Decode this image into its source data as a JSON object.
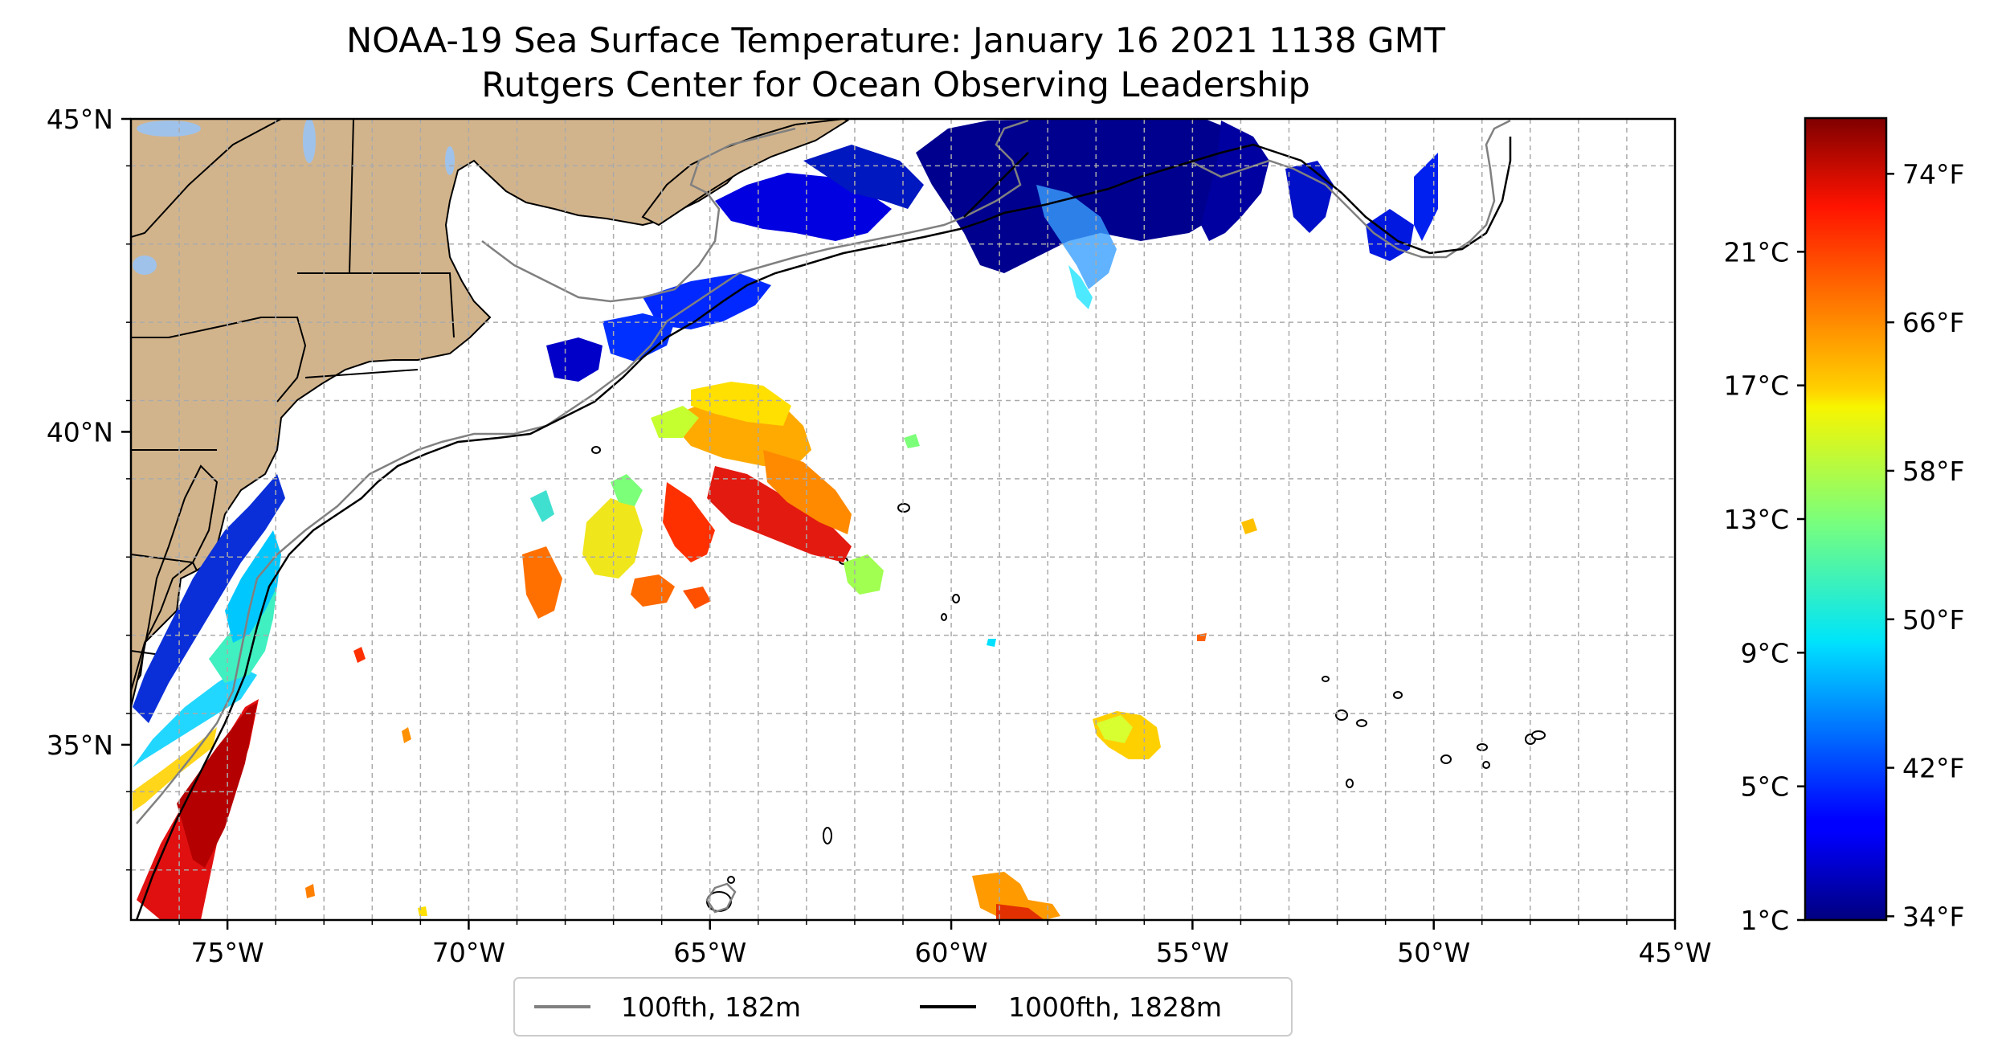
{
  "title": "NOAA-19 Sea Surface Temperature: January 16 2021 1138 GMT",
  "subtitle": "Rutgers Center for Ocean Observing Leadership",
  "map": {
    "lon_range": [
      -77,
      -45
    ],
    "lat_range": [
      32.2,
      45
    ],
    "x_ticks": [
      {
        "lon": -75,
        "label": "75°W"
      },
      {
        "lon": -70,
        "label": "70°W"
      },
      {
        "lon": -65,
        "label": "65°W"
      },
      {
        "lon": -60,
        "label": "60°W"
      },
      {
        "lon": -55,
        "label": "55°W"
      },
      {
        "lon": -50,
        "label": "50°W"
      },
      {
        "lon": -45,
        "label": "45°W"
      }
    ],
    "y_ticks": [
      {
        "lat": 45,
        "label": "45°N"
      },
      {
        "lat": 40,
        "label": "40°N"
      },
      {
        "lat": 35,
        "label": "35°N"
      }
    ],
    "grid": true,
    "land_color": "#d2b48c",
    "lake_color": "#9fc2ea",
    "ocean_color": "#ffffff"
  },
  "colorbar": {
    "colormap": "jet",
    "range_c": [
      1,
      25
    ],
    "celsius_ticks": [
      {
        "value": 1,
        "label": "1°C"
      },
      {
        "value": 5,
        "label": "5°C"
      },
      {
        "value": 9,
        "label": "9°C"
      },
      {
        "value": 13,
        "label": "13°C"
      },
      {
        "value": 17,
        "label": "17°C"
      },
      {
        "value": 21,
        "label": "21°C"
      }
    ],
    "fahrenheit_ticks": [
      {
        "value": 34,
        "label": "34°F"
      },
      {
        "value": 42,
        "label": "42°F"
      },
      {
        "value": 50,
        "label": "50°F"
      },
      {
        "value": 58,
        "label": "58°F"
      },
      {
        "value": 66,
        "label": "66°F"
      },
      {
        "value": 74,
        "label": "74°F"
      }
    ]
  },
  "legend": {
    "placement": "bottom-center",
    "entries": [
      {
        "label": "100fth, 182m",
        "color": "#808080"
      },
      {
        "label": "1000fth, 1828m",
        "color": "#000000"
      }
    ]
  }
}
